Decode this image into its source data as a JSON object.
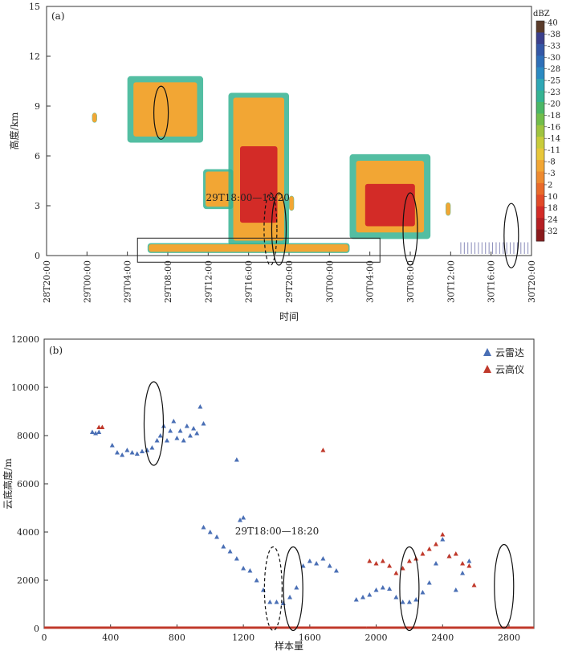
{
  "chart_data": [
    {
      "type": "heatmap",
      "panel_label": "(a)",
      "xlabel": "时间",
      "ylabel": "高度/km",
      "ylim": [
        0,
        15
      ],
      "yticks": [
        "0",
        "3",
        "6",
        "9",
        "12",
        "15"
      ],
      "xticks": [
        "28T20:00",
        "29T00:00",
        "29T04:00",
        "29T08:00",
        "29T12:00",
        "29T16:00",
        "29T20:00",
        "30T00:00",
        "30T04:00",
        "30T08:00",
        "30T12:00",
        "30T16:00",
        "30T20:00"
      ],
      "colorbar": {
        "unit": "dBZ",
        "labels": [
          "40",
          "-38",
          "-33",
          "-30",
          "-28",
          "-25",
          "-23",
          "-20",
          "-18",
          "-16",
          "-14",
          "-11",
          "-8",
          "-3",
          "2",
          "10",
          "18",
          "24",
          "32"
        ],
        "colors": [
          "#5a3b2a",
          "#3b3f8c",
          "#3457a6",
          "#2e6fb8",
          "#2b8ac2",
          "#2ea7b5",
          "#35b392",
          "#4bb766",
          "#72bd4a",
          "#9fc43f",
          "#c8cc3a",
          "#e8c73a",
          "#f2a634",
          "#ee8a2f",
          "#e96a2a",
          "#e24a28",
          "#d32b27",
          "#b51f23",
          "#8a1a1c"
        ]
      },
      "cloud_bodies": [
        {
          "start": "29T00:30",
          "end": "29T01:00",
          "bottom": 8.0,
          "top": 8.6
        },
        {
          "start": "29T04:00",
          "end": "29T11:30",
          "bottom": 6.8,
          "top": 10.8
        },
        {
          "start": "29T11:30",
          "end": "29T14:30",
          "bottom": 2.8,
          "top": 5.2
        },
        {
          "start": "29T14:00",
          "end": "29T20:00",
          "bottom": 0.6,
          "top": 9.8
        },
        {
          "start": "29T20:00",
          "end": "29T20:30",
          "bottom": 2.7,
          "top": 3.6
        },
        {
          "start": "30T02:00",
          "end": "30T10:00",
          "bottom": 1.0,
          "top": 6.1
        },
        {
          "start": "30T11:30",
          "end": "30T12:00",
          "bottom": 2.4,
          "top": 3.2
        },
        {
          "start": "29T06:00",
          "end": "30T02:00",
          "bottom": 0.15,
          "top": 0.75
        }
      ],
      "annotation": "29T18:00—18:20"
    },
    {
      "type": "scatter",
      "panel_label": "(b)",
      "xlabel": "样本量",
      "ylabel": "云底高度/m",
      "xlim": [
        0,
        2950
      ],
      "ylim": [
        0,
        12000
      ],
      "xticks": [
        "0",
        "400",
        "800",
        "1200",
        "1600",
        "2000",
        "2400",
        "2800"
      ],
      "yticks": [
        "0",
        "2000",
        "4000",
        "6000",
        "8000",
        "10000",
        "12000"
      ],
      "annotation": "29T18:00—18:20",
      "series": [
        {
          "name": "云雷达",
          "color": "#4a6fb5",
          "points": [
            [
              290,
              8150
            ],
            [
              310,
              8100
            ],
            [
              330,
              8150
            ],
            [
              410,
              7600
            ],
            [
              440,
              7300
            ],
            [
              470,
              7200
            ],
            [
              500,
              7400
            ],
            [
              530,
              7300
            ],
            [
              560,
              7250
            ],
            [
              590,
              7350
            ],
            [
              620,
              7400
            ],
            [
              650,
              7500
            ],
            [
              680,
              7800
            ],
            [
              700,
              8000
            ],
            [
              720,
              8400
            ],
            [
              740,
              7800
            ],
            [
              760,
              8200
            ],
            [
              780,
              8600
            ],
            [
              800,
              7900
            ],
            [
              820,
              8200
            ],
            [
              840,
              7800
            ],
            [
              860,
              8400
            ],
            [
              880,
              8000
            ],
            [
              900,
              8300
            ],
            [
              920,
              8100
            ],
            [
              940,
              9200
            ],
            [
              960,
              8500
            ],
            [
              1160,
              7000
            ],
            [
              1180,
              4500
            ],
            [
              1200,
              4600
            ],
            [
              960,
              4200
            ],
            [
              1000,
              4000
            ],
            [
              1040,
              3800
            ],
            [
              1080,
              3400
            ],
            [
              1120,
              3200
            ],
            [
              1160,
              2900
            ],
            [
              1200,
              2500
            ],
            [
              1240,
              2400
            ],
            [
              1280,
              2000
            ],
            [
              1320,
              1600
            ],
            [
              1360,
              1100
            ],
            [
              1400,
              1100
            ],
            [
              1440,
              1050
            ],
            [
              1480,
              1300
            ],
            [
              1520,
              1700
            ],
            [
              1560,
              2600
            ],
            [
              1600,
              2800
            ],
            [
              1640,
              2700
            ],
            [
              1680,
              2900
            ],
            [
              1720,
              2600
            ],
            [
              1760,
              2400
            ],
            [
              1880,
              1200
            ],
            [
              1920,
              1300
            ],
            [
              1960,
              1400
            ],
            [
              2000,
              1600
            ],
            [
              2040,
              1700
            ],
            [
              2080,
              1650
            ],
            [
              2120,
              1300
            ],
            [
              2160,
              1100
            ],
            [
              2200,
              1100
            ],
            [
              2240,
              1200
            ],
            [
              2280,
              1500
            ],
            [
              2320,
              1900
            ],
            [
              2360,
              2700
            ],
            [
              2400,
              3700
            ],
            [
              2440,
              3000
            ],
            [
              2480,
              1600
            ],
            [
              2520,
              2300
            ],
            [
              2560,
              2800
            ]
          ]
        },
        {
          "name": "云高仪",
          "color": "#c0392b",
          "points": [
            [
              330,
              8350
            ],
            [
              350,
              8350
            ],
            [
              1680,
              7400
            ],
            [
              1960,
              2800
            ],
            [
              2000,
              2700
            ],
            [
              2040,
              2800
            ],
            [
              2080,
              2600
            ],
            [
              2120,
              2300
            ],
            [
              2160,
              2500
            ],
            [
              2200,
              2800
            ],
            [
              2240,
              2900
            ],
            [
              2280,
              3100
            ],
            [
              2320,
              3300
            ],
            [
              2360,
              3500
            ],
            [
              2400,
              3900
            ],
            [
              2440,
              3000
            ],
            [
              2480,
              3100
            ],
            [
              2520,
              2700
            ],
            [
              2560,
              2600
            ],
            [
              2590,
              1800
            ]
          ]
        }
      ]
    }
  ],
  "legend": {
    "radar": "云雷达",
    "ceilometer": "云高仪"
  }
}
